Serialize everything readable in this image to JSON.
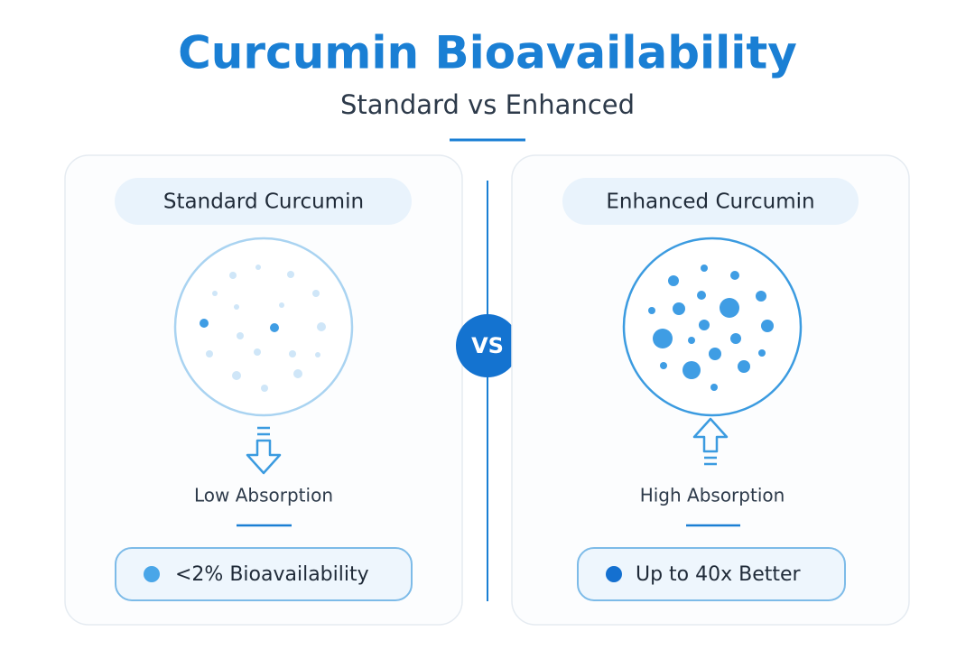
{
  "header": {
    "title": "Curcumin Bioavailability",
    "subtitle": "Standard vs Enhanced"
  },
  "divider": {
    "label": "VS"
  },
  "panels": [
    {
      "heading": "Standard Curcumin",
      "label": "Low Absorption",
      "stat": "<2% Bioavailability"
    },
    {
      "heading": "Enhanced Curcumin",
      "label": "High Absorption",
      "stat": "Up to 40x Better"
    }
  ]
}
